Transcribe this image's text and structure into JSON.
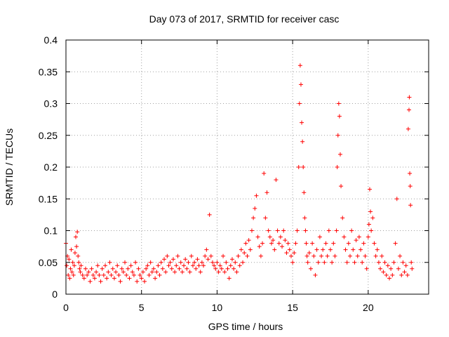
{
  "chart_data": {
    "type": "scatter",
    "title": "Day 073 of 2017, SRMTID for receiver casc",
    "xlabel": "GPS time / hours",
    "ylabel": "SRMTID / TECUs",
    "xlim": [
      0,
      24
    ],
    "ylim": [
      0,
      0.4
    ],
    "grid": true,
    "marker": "+",
    "color": "#ff0000",
    "x_ticks": [
      0,
      5,
      10,
      15,
      20
    ],
    "x_tick_labels": [
      "0",
      "5",
      "10",
      "15",
      "20"
    ],
    "y_ticks": [
      0,
      0.05,
      0.1,
      0.15,
      0.2,
      0.25,
      0.3,
      0.35,
      0.4
    ],
    "y_tick_labels": [
      "0",
      "0.05",
      "0.1",
      "0.15",
      "0.2",
      "0.25",
      "0.3",
      "0.35",
      "0.4"
    ],
    "series": [
      {
        "name": "SRMTID",
        "points": [
          [
            0.0,
            0.08
          ],
          [
            0.05,
            0.045
          ],
          [
            0.1,
            0.06
          ],
          [
            0.15,
            0.03
          ],
          [
            0.2,
            0.055
          ],
          [
            0.25,
            0.025
          ],
          [
            0.3,
            0.04
          ],
          [
            0.35,
            0.07
          ],
          [
            0.4,
            0.035
          ],
          [
            0.45,
            0.05
          ],
          [
            0.5,
            0.03
          ],
          [
            0.55,
            0.045
          ],
          [
            0.6,
            0.065
          ],
          [
            0.65,
            0.09
          ],
          [
            0.7,
            0.075
          ],
          [
            0.75,
            0.098
          ],
          [
            0.8,
            0.06
          ],
          [
            0.85,
            0.05
          ],
          [
            0.9,
            0.04
          ],
          [
            0.95,
            0.035
          ],
          [
            1.0,
            0.045
          ],
          [
            1.1,
            0.03
          ],
          [
            1.2,
            0.025
          ],
          [
            1.3,
            0.04
          ],
          [
            1.4,
            0.03
          ],
          [
            1.5,
            0.035
          ],
          [
            1.6,
            0.02
          ],
          [
            1.7,
            0.04
          ],
          [
            1.8,
            0.03
          ],
          [
            1.9,
            0.025
          ],
          [
            2.0,
            0.035
          ],
          [
            2.1,
            0.045
          ],
          [
            2.2,
            0.03
          ],
          [
            2.3,
            0.02
          ],
          [
            2.4,
            0.04
          ],
          [
            2.5,
            0.03
          ],
          [
            2.6,
            0.045
          ],
          [
            2.7,
            0.025
          ],
          [
            2.8,
            0.035
          ],
          [
            2.9,
            0.05
          ],
          [
            3.0,
            0.03
          ],
          [
            3.1,
            0.04
          ],
          [
            3.2,
            0.025
          ],
          [
            3.3,
            0.035
          ],
          [
            3.4,
            0.045
          ],
          [
            3.5,
            0.03
          ],
          [
            3.6,
            0.02
          ],
          [
            3.7,
            0.04
          ],
          [
            3.8,
            0.035
          ],
          [
            3.9,
            0.05
          ],
          [
            4.0,
            0.03
          ],
          [
            4.1,
            0.04
          ],
          [
            4.2,
            0.025
          ],
          [
            4.3,
            0.045
          ],
          [
            4.4,
            0.035
          ],
          [
            4.5,
            0.03
          ],
          [
            4.6,
            0.05
          ],
          [
            4.7,
            0.02
          ],
          [
            4.8,
            0.04
          ],
          [
            4.9,
            0.03
          ],
          [
            5.0,
            0.025
          ],
          [
            5.1,
            0.035
          ],
          [
            5.2,
            0.02
          ],
          [
            5.3,
            0.04
          ],
          [
            5.4,
            0.045
          ],
          [
            5.5,
            0.03
          ],
          [
            5.6,
            0.05
          ],
          [
            5.7,
            0.035
          ],
          [
            5.8,
            0.04
          ],
          [
            5.9,
            0.025
          ],
          [
            6.0,
            0.035
          ],
          [
            6.1,
            0.045
          ],
          [
            6.2,
            0.03
          ],
          [
            6.3,
            0.05
          ],
          [
            6.4,
            0.04
          ],
          [
            6.5,
            0.055
          ],
          [
            6.6,
            0.035
          ],
          [
            6.7,
            0.06
          ],
          [
            6.8,
            0.045
          ],
          [
            6.9,
            0.05
          ],
          [
            7.0,
            0.04
          ],
          [
            7.1,
            0.055
          ],
          [
            7.2,
            0.035
          ],
          [
            7.3,
            0.045
          ],
          [
            7.4,
            0.06
          ],
          [
            7.5,
            0.04
          ],
          [
            7.6,
            0.05
          ],
          [
            7.7,
            0.035
          ],
          [
            7.8,
            0.045
          ],
          [
            7.9,
            0.055
          ],
          [
            8.0,
            0.04
          ],
          [
            8.1,
            0.05
          ],
          [
            8.2,
            0.035
          ],
          [
            8.3,
            0.06
          ],
          [
            8.4,
            0.045
          ],
          [
            8.5,
            0.05
          ],
          [
            8.6,
            0.04
          ],
          [
            8.7,
            0.055
          ],
          [
            8.8,
            0.045
          ],
          [
            8.9,
            0.035
          ],
          [
            9.0,
            0.05
          ],
          [
            9.1,
            0.045
          ],
          [
            9.2,
            0.06
          ],
          [
            9.3,
            0.07
          ],
          [
            9.4,
            0.055
          ],
          [
            9.5,
            0.125
          ],
          [
            9.6,
            0.06
          ],
          [
            9.7,
            0.05
          ],
          [
            9.8,
            0.045
          ],
          [
            9.9,
            0.04
          ],
          [
            10.0,
            0.05
          ],
          [
            10.1,
            0.035
          ],
          [
            10.2,
            0.045
          ],
          [
            10.3,
            0.04
          ],
          [
            10.4,
            0.06
          ],
          [
            10.5,
            0.035
          ],
          [
            10.6,
            0.05
          ],
          [
            10.7,
            0.04
          ],
          [
            10.8,
            0.025
          ],
          [
            10.9,
            0.045
          ],
          [
            11.0,
            0.055
          ],
          [
            11.1,
            0.04
          ],
          [
            11.2,
            0.05
          ],
          [
            11.3,
            0.035
          ],
          [
            11.4,
            0.06
          ],
          [
            11.5,
            0.045
          ],
          [
            11.6,
            0.07
          ],
          [
            11.7,
            0.05
          ],
          [
            11.8,
            0.065
          ],
          [
            11.9,
            0.08
          ],
          [
            12.0,
            0.06
          ],
          [
            12.1,
            0.085
          ],
          [
            12.2,
            0.07
          ],
          [
            12.3,
            0.1
          ],
          [
            12.4,
            0.12
          ],
          [
            12.5,
            0.135
          ],
          [
            12.6,
            0.155
          ],
          [
            12.7,
            0.09
          ],
          [
            12.8,
            0.075
          ],
          [
            12.9,
            0.06
          ],
          [
            13.0,
            0.08
          ],
          [
            13.1,
            0.19
          ],
          [
            13.2,
            0.12
          ],
          [
            13.3,
            0.16
          ],
          [
            13.4,
            0.1
          ],
          [
            13.5,
            0.09
          ],
          [
            13.6,
            0.08
          ],
          [
            13.7,
            0.085
          ],
          [
            13.8,
            0.07
          ],
          [
            13.9,
            0.18
          ],
          [
            14.0,
            0.1
          ],
          [
            14.1,
            0.08
          ],
          [
            14.2,
            0.09
          ],
          [
            14.3,
            0.075
          ],
          [
            14.4,
            0.1
          ],
          [
            14.5,
            0.085
          ],
          [
            14.6,
            0.065
          ],
          [
            14.7,
            0.08
          ],
          [
            14.8,
            0.07
          ],
          [
            14.9,
            0.06
          ],
          [
            15.0,
            0.05
          ],
          [
            15.1,
            0.065
          ],
          [
            15.2,
            0.08
          ],
          [
            15.3,
            0.1
          ],
          [
            15.4,
            0.2
          ],
          [
            15.45,
            0.3
          ],
          [
            15.5,
            0.36
          ],
          [
            15.55,
            0.33
          ],
          [
            15.6,
            0.27
          ],
          [
            15.65,
            0.24
          ],
          [
            15.7,
            0.2
          ],
          [
            15.75,
            0.16
          ],
          [
            15.8,
            0.12
          ],
          [
            15.85,
            0.1
          ],
          [
            15.9,
            0.08
          ],
          [
            15.95,
            0.06
          ],
          [
            16.0,
            0.05
          ],
          [
            16.1,
            0.065
          ],
          [
            16.2,
            0.04
          ],
          [
            16.3,
            0.08
          ],
          [
            16.4,
            0.06
          ],
          [
            16.5,
            0.03
          ],
          [
            16.6,
            0.07
          ],
          [
            16.7,
            0.05
          ],
          [
            16.8,
            0.09
          ],
          [
            16.9,
            0.06
          ],
          [
            17.0,
            0.07
          ],
          [
            17.1,
            0.05
          ],
          [
            17.2,
            0.08
          ],
          [
            17.3,
            0.06
          ],
          [
            17.4,
            0.1
          ],
          [
            17.5,
            0.07
          ],
          [
            17.6,
            0.05
          ],
          [
            17.7,
            0.08
          ],
          [
            17.8,
            0.06
          ],
          [
            17.9,
            0.1
          ],
          [
            17.95,
            0.2
          ],
          [
            18.0,
            0.25
          ],
          [
            18.05,
            0.3
          ],
          [
            18.1,
            0.28
          ],
          [
            18.15,
            0.22
          ],
          [
            18.2,
            0.17
          ],
          [
            18.3,
            0.12
          ],
          [
            18.4,
            0.09
          ],
          [
            18.5,
            0.07
          ],
          [
            18.6,
            0.05
          ],
          [
            18.7,
            0.08
          ],
          [
            18.8,
            0.06
          ],
          [
            18.9,
            0.1
          ],
          [
            19.0,
            0.07
          ],
          [
            19.1,
            0.05
          ],
          [
            19.2,
            0.085
          ],
          [
            19.3,
            0.06
          ],
          [
            19.4,
            0.09
          ],
          [
            19.5,
            0.07
          ],
          [
            19.6,
            0.05
          ],
          [
            19.7,
            0.08
          ],
          [
            19.8,
            0.06
          ],
          [
            19.9,
            0.04
          ],
          [
            20.0,
            0.09
          ],
          [
            20.05,
            0.11
          ],
          [
            20.1,
            0.165
          ],
          [
            20.15,
            0.13
          ],
          [
            20.2,
            0.1
          ],
          [
            20.3,
            0.12
          ],
          [
            20.4,
            0.08
          ],
          [
            20.5,
            0.06
          ],
          [
            20.6,
            0.07
          ],
          [
            20.7,
            0.05
          ],
          [
            20.8,
            0.04
          ],
          [
            20.9,
            0.06
          ],
          [
            21.0,
            0.035
          ],
          [
            21.1,
            0.05
          ],
          [
            21.2,
            0.03
          ],
          [
            21.3,
            0.045
          ],
          [
            21.4,
            0.025
          ],
          [
            21.5,
            0.04
          ],
          [
            21.6,
            0.03
          ],
          [
            21.7,
            0.05
          ],
          [
            21.8,
            0.08
          ],
          [
            21.9,
            0.15
          ],
          [
            22.0,
            0.04
          ],
          [
            22.1,
            0.06
          ],
          [
            22.2,
            0.03
          ],
          [
            22.3,
            0.05
          ],
          [
            22.4,
            0.035
          ],
          [
            22.5,
            0.045
          ],
          [
            22.6,
            0.03
          ],
          [
            22.65,
            0.26
          ],
          [
            22.7,
            0.29
          ],
          [
            22.72,
            0.31
          ],
          [
            22.75,
            0.19
          ],
          [
            22.78,
            0.17
          ],
          [
            22.8,
            0.14
          ],
          [
            22.85,
            0.05
          ],
          [
            22.9,
            0.04
          ]
        ]
      }
    ]
  }
}
